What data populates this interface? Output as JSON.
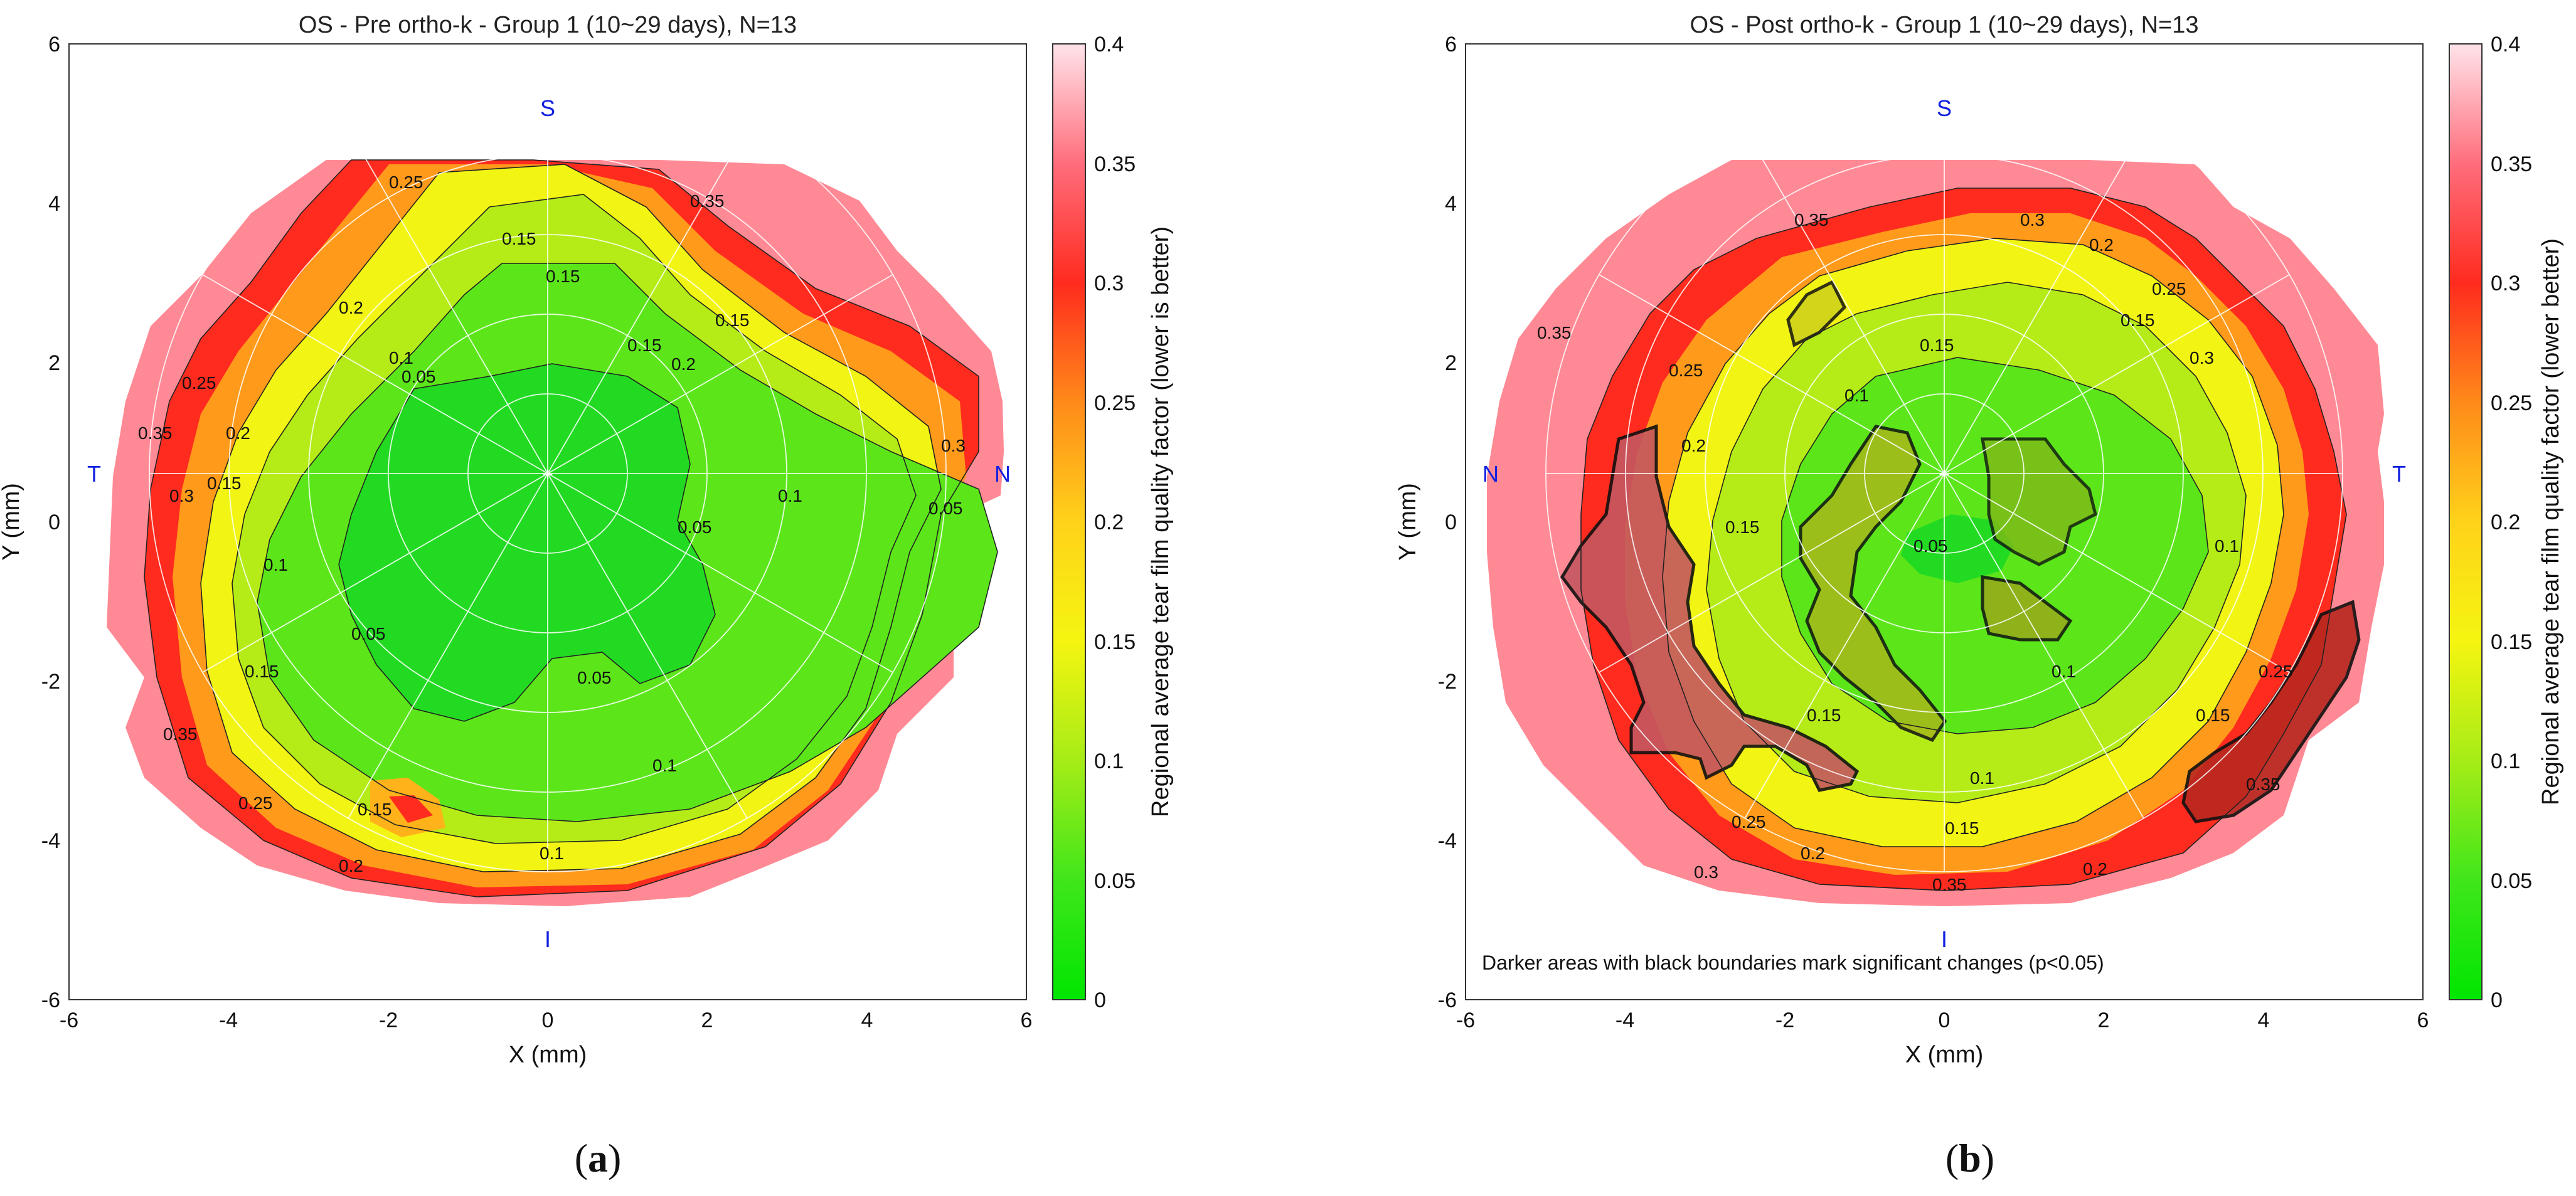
{
  "figure_note": "Darker areas with black boundaries mark significant changes (p<0.05)",
  "chart_data": [
    {
      "type": "heatmap",
      "panel_label": "(a)",
      "panel_letter": "a",
      "title": "OS - Pre ortho-k - Group 1 (10~29 days), N=13",
      "xlabel": "X (mm)",
      "ylabel": "Y (mm)",
      "xlim": [
        -6,
        6
      ],
      "ylim": [
        -6,
        6
      ],
      "xticks": [
        "-6",
        "-4",
        "-2",
        "0",
        "2",
        "4",
        "6"
      ],
      "yticks": [
        "6",
        "4",
        "2",
        "0",
        "-2",
        "-4",
        "-6"
      ],
      "colorbar": {
        "label": "Regional average tear film quality factor (lower is better)",
        "range": [
          0,
          0.4
        ],
        "ticks": [
          "0",
          "0.05",
          "0.1",
          "0.15",
          "0.2",
          "0.25",
          "0.3",
          "0.35",
          "0.4"
        ]
      },
      "orientation": {
        "top": "S",
        "bottom": "I",
        "left": "T",
        "right": "N"
      },
      "contour_levels": [
        0.05,
        0.1,
        0.15,
        0.2,
        0.25,
        0.3,
        0.35
      ],
      "contour_labels": [
        "0.05",
        "0.1",
        "0.15",
        "0.2",
        "0.25",
        "0.3",
        "0.35"
      ],
      "region_values": {
        "center": 0.05,
        "mid_zone": 0.1,
        "transition": 0.15,
        "periphery": 0.35
      },
      "significant_regions": []
    },
    {
      "type": "heatmap",
      "panel_label": "(b)",
      "panel_letter": "b",
      "title": "OS - Post ortho-k - Group 1 (10~29 days), N=13",
      "xlabel": "X (mm)",
      "ylabel": "Y (mm)",
      "xlim": [
        -6,
        6
      ],
      "ylim": [
        -6,
        6
      ],
      "xticks": [
        "-6",
        "-4",
        "-2",
        "0",
        "2",
        "4",
        "6"
      ],
      "yticks": [
        "6",
        "4",
        "2",
        "0",
        "-2",
        "-4",
        "-6"
      ],
      "colorbar": {
        "label": "Regional average tear film quality factor (lower better)",
        "range": [
          0,
          0.4
        ],
        "ticks": [
          "0",
          "0.05",
          "0.1",
          "0.15",
          "0.2",
          "0.25",
          "0.3",
          "0.35",
          "0.4"
        ]
      },
      "orientation": {
        "top": "S",
        "bottom": "I",
        "left": "N",
        "right": "T"
      },
      "contour_levels": [
        0.05,
        0.1,
        0.15,
        0.2,
        0.25,
        0.3,
        0.35
      ],
      "contour_labels": [
        "0.05",
        "0.1",
        "0.15",
        "0.2",
        "0.25",
        "0.3",
        "0.35"
      ],
      "region_values": {
        "center": 0.05,
        "mid_zone": 0.1,
        "transition": 0.15,
        "periphery": 0.35
      },
      "significant_regions": [
        "nasal-inferior periphery",
        "temporal-inferior periphery",
        "central-superior"
      ]
    }
  ]
}
